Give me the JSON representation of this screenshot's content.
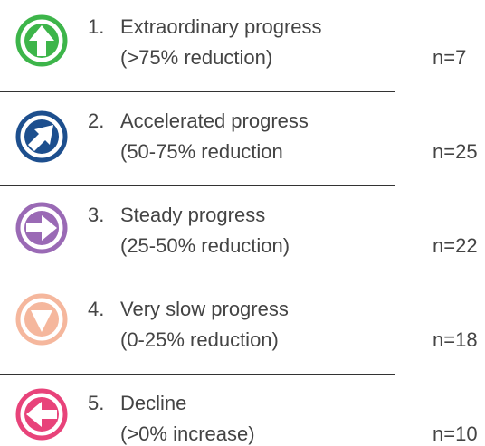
{
  "items": [
    {
      "number": "1.",
      "label": "Extraordinary progress",
      "range": "(>75% reduction)",
      "count": "n=7"
    },
    {
      "number": "2.",
      "label": "Accelerated progress",
      "range": "(50-75% reduction",
      "count": "n=25"
    },
    {
      "number": "3.",
      "label": "Steady progress",
      "range": "(25-50% reduction)",
      "count": "n=22"
    },
    {
      "number": "4.",
      "label": "Very slow progress",
      "range": "(0-25% reduction)",
      "count": "n=18"
    },
    {
      "number": "5.",
      "label": "Decline",
      "range": "(>0% increase)",
      "count": "n=10"
    }
  ]
}
